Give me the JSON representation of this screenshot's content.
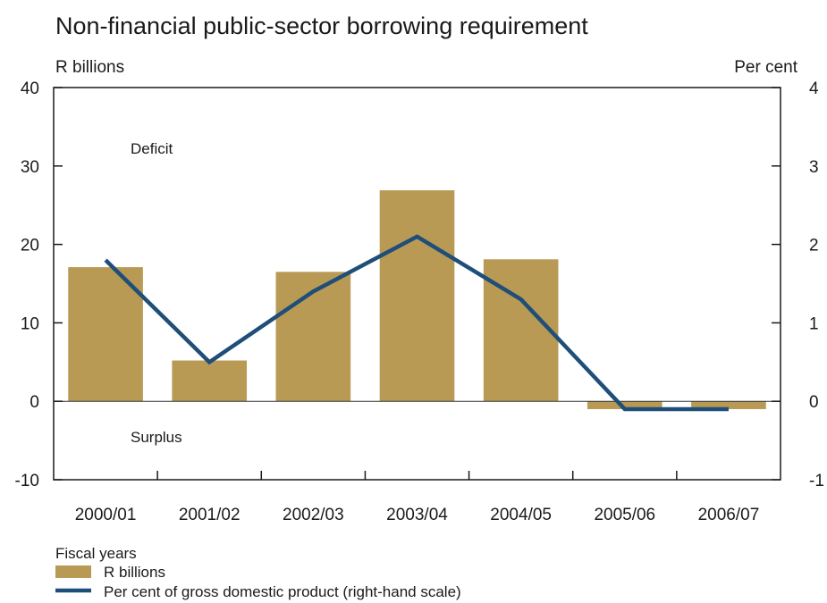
{
  "chart_data": {
    "type": "bar",
    "title": "Non-financial public-sector borrowing requirement",
    "xlabel": "Fiscal years",
    "ylabel_left": "R billions",
    "ylabel_right": "Per cent",
    "categories": [
      "2000/01",
      "2001/02",
      "2002/03",
      "2003/04",
      "2004/05",
      "2005/06",
      "2006/07"
    ],
    "ylim_left": [
      -10,
      40
    ],
    "yticks_left": [
      "-10",
      "0",
      "10",
      "20",
      "30",
      "40"
    ],
    "ylim_right": [
      -1,
      4
    ],
    "yticks_right": [
      "-1",
      "0",
      "1",
      "2",
      "3",
      "4"
    ],
    "grid": false,
    "legend_position": "bottom-left",
    "annotations": {
      "upper": "Deficit",
      "lower": "Surplus"
    },
    "series": [
      {
        "name": "R billions",
        "kind": "bar",
        "axis": "left",
        "color": "#b89a55",
        "values": [
          17.1,
          5.2,
          16.5,
          26.9,
          18.1,
          -1.0,
          -1.0
        ]
      },
      {
        "name": "Per cent of gross domestic product (right-hand scale)",
        "kind": "line",
        "axis": "right",
        "color": "#1f4e79",
        "values": [
          1.8,
          0.5,
          1.4,
          2.1,
          1.3,
          -0.1,
          -0.1
        ]
      }
    ]
  }
}
